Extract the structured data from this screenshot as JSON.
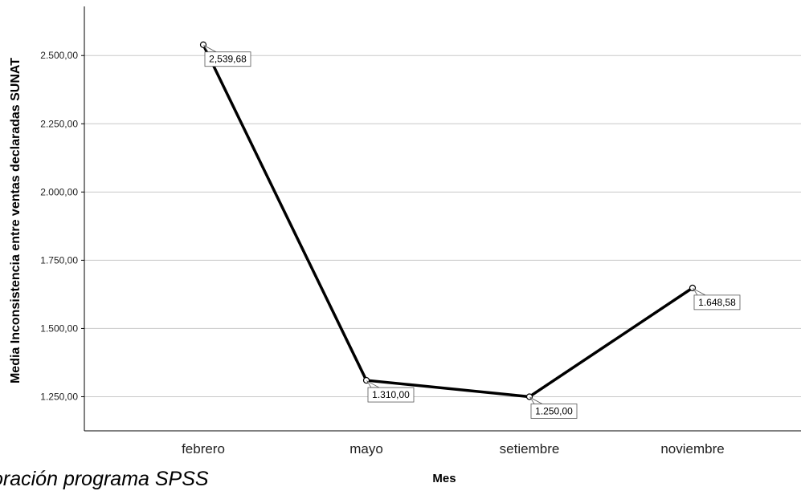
{
  "caption": "oración programa SPSS",
  "chart_data": {
    "type": "line",
    "xlabel": "Mes",
    "ylabel": "Media Inconsistencia entre ventas declaradas SUNAT",
    "categories": [
      "febrero",
      "mayo",
      "setiembre",
      "noviembre"
    ],
    "values": [
      2539.68,
      1310.0,
      1250.0,
      1648.58
    ],
    "value_labels": [
      "2,539,68",
      "1.310,00",
      "1.250,00",
      "1.648,58"
    ],
    "y_ticks": [
      1250,
      1500,
      1750,
      2000,
      2250,
      2500
    ],
    "y_tick_labels": [
      "1.250,00",
      "1.500,00",
      "1.750,00",
      "2.000,00",
      "2.250,00",
      "2.500,00"
    ],
    "ylim": [
      1125,
      2680
    ],
    "grid": true,
    "legend": "none",
    "colors": {
      "line": "#000000",
      "grid": "#c8c8c8",
      "axis": "#000000"
    }
  }
}
